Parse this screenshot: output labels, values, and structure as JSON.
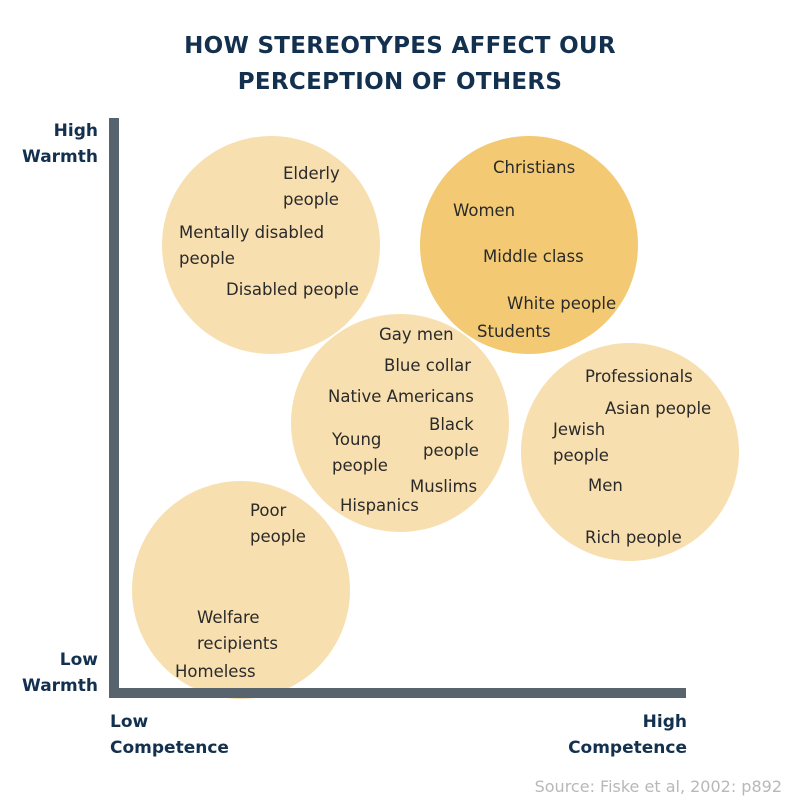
{
  "title": {
    "line1": "HOW STEREOTYPES AFFECT OUR",
    "line2": "PERCEPTION OF OTHERS"
  },
  "axes": {
    "y_high": {
      "line1": "High",
      "line2": "Warmth"
    },
    "y_low": {
      "line1": "Low",
      "line2": "Warmth"
    },
    "x_low": {
      "line1": "Low",
      "line2": "Competence"
    },
    "x_high": {
      "line1": "High",
      "line2": "Competence"
    },
    "color": "#57636d"
  },
  "colors": {
    "title": "#13314f",
    "circle_light": "#f5d69a",
    "circle_dark": "#f2c464",
    "label_text": "#2a2a2a",
    "source_text": "#b8b8b8"
  },
  "groups": {
    "high_warmth_low_competence": {
      "elderly": {
        "line1": "Elderly",
        "line2": "people"
      },
      "mentally_disabled": {
        "line1": "Mentally disabled",
        "line2": "people"
      },
      "disabled": "Disabled people"
    },
    "high_warmth_high_competence": {
      "christians": "Christians",
      "women": "Women",
      "middle_class": "Middle class",
      "white_people": "White people",
      "students": "Students"
    },
    "middle": {
      "gay_men": "Gay men",
      "blue_collar": "Blue collar",
      "native_americans": "Native Americans",
      "black_people": {
        "line1": "Black",
        "line2": "people"
      },
      "young_people": {
        "line1": "Young",
        "line2": "people"
      },
      "muslims": "Muslims",
      "hispanics": "Hispanics"
    },
    "low_warmth_high_competence": {
      "professionals": "Professionals",
      "asian_people": "Asian people",
      "jewish_people": {
        "line1": "Jewish",
        "line2": "people"
      },
      "men": "Men",
      "rich_people": "Rich people"
    },
    "low_warmth_low_competence": {
      "poor_people": {
        "line1": "Poor",
        "line2": "people"
      },
      "welfare_recipients": {
        "line1": "Welfare",
        "line2": "recipients"
      },
      "homeless": "Homeless"
    }
  },
  "source": "Source: Fiske et al, 2002: p892"
}
